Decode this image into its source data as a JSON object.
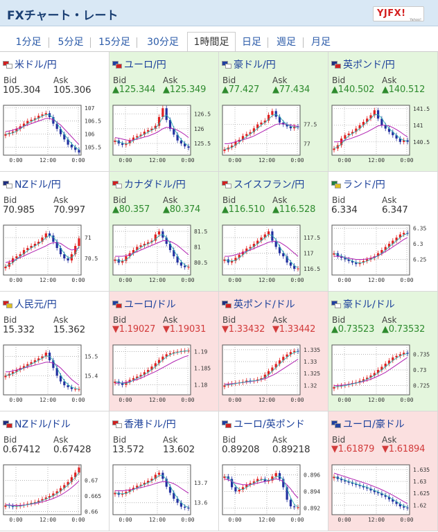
{
  "header": {
    "title": "FXチャート・レート",
    "logo": "YJFX!",
    "logo_sub": "Yahoo!"
  },
  "tabs": [
    {
      "label": "1分足"
    },
    {
      "label": "5分足"
    },
    {
      "label": "15分足"
    },
    {
      "label": "30分足"
    },
    {
      "label": "1時間足",
      "active": true
    },
    {
      "label": "日足"
    },
    {
      "label": "週足"
    },
    {
      "label": "月足"
    }
  ],
  "labels": {
    "bid": "Bid",
    "ask": "Ask"
  },
  "colors": {
    "up": "#2e8b2e",
    "down": "#d23b3b",
    "candle_up": "#e02020",
    "candle_down": "#2230a0",
    "ma1": "#2ab0b0",
    "ma2": "#b020b0"
  },
  "pairs": [
    {
      "name": "米ドル/円",
      "dir": "flat",
      "bid": "105.304",
      "ask": "105.306",
      "flags": [
        "#d02020",
        "#ffffff"
      ],
      "chart": {
        "yticks": [
          "107",
          "106.5",
          "106",
          "105.5"
        ],
        "xticks": [
          "0:00",
          "12:00",
          "0:00"
        ],
        "ymin": 105.2,
        "ymax": 107.1,
        "close": [
          106.0,
          106.05,
          106.1,
          106.2,
          106.3,
          106.4,
          106.5,
          106.55,
          106.6,
          106.7,
          106.75,
          106.8,
          106.65,
          106.4,
          106.2,
          106.0,
          105.8,
          105.6,
          105.5,
          105.4,
          105.3
        ],
        "ma": [
          106.1,
          106.12,
          106.15,
          106.2,
          106.25,
          106.3,
          106.35,
          106.4,
          106.45,
          106.5,
          106.55,
          106.6,
          106.6,
          106.55,
          106.45,
          106.35,
          106.2,
          106.05,
          105.9,
          105.75,
          105.6
        ]
      }
    },
    {
      "name": "ユーロ/円",
      "dir": "up",
      "bid": "▲125.344",
      "ask": "▲125.349",
      "flags": [
        "#2040a0",
        "#d02020"
      ],
      "chart": {
        "yticks": [
          "126.5",
          "126",
          "125.5"
        ],
        "xticks": [
          "0:00",
          "12:00",
          "0:00"
        ],
        "ymin": 125.1,
        "ymax": 126.8,
        "close": [
          125.6,
          125.5,
          125.45,
          125.5,
          125.6,
          125.7,
          125.75,
          125.8,
          125.9,
          125.95,
          126.0,
          126.1,
          126.4,
          126.7,
          126.3,
          126.0,
          125.8,
          125.6,
          125.5,
          125.4,
          125.35
        ],
        "ma": [
          125.7,
          125.68,
          125.65,
          125.62,
          125.6,
          125.62,
          125.65,
          125.68,
          125.72,
          125.75,
          125.8,
          125.85,
          125.92,
          126.0,
          126.05,
          126.03,
          126.0,
          125.95,
          125.88,
          125.8,
          125.7
        ]
      }
    },
    {
      "name": "豪ドル/円",
      "dir": "up",
      "bid": "▲77.427",
      "ask": "▲77.434",
      "flags": [
        "#2040a0",
        "#ffffff"
      ],
      "chart": {
        "yticks": [
          "77.5",
          "77"
        ],
        "xticks": [
          "0:00",
          "12:00",
          "0:00"
        ],
        "ymin": 76.7,
        "ymax": 78.0,
        "close": [
          76.85,
          76.9,
          76.95,
          77.05,
          77.1,
          77.2,
          77.25,
          77.3,
          77.4,
          77.5,
          77.55,
          77.6,
          77.75,
          77.85,
          77.7,
          77.55,
          77.5,
          77.45,
          77.4,
          77.45,
          77.43
        ],
        "ma": [
          77.0,
          77.0,
          77.02,
          77.05,
          77.08,
          77.1,
          77.13,
          77.16,
          77.2,
          77.25,
          77.3,
          77.35,
          77.4,
          77.45,
          77.5,
          77.52,
          77.52,
          77.5,
          77.48,
          77.47,
          77.45
        ]
      }
    },
    {
      "name": "英ポンド/円",
      "dir": "up",
      "bid": "▲140.502",
      "ask": "▲140.512",
      "flags": [
        "#203080",
        "#d02020"
      ],
      "chart": {
        "yticks": [
          "141.5",
          "141",
          "140.5"
        ],
        "xticks": [
          "0:00",
          "12:00",
          "0:00"
        ],
        "ymin": 140.1,
        "ymax": 141.6,
        "close": [
          140.3,
          140.4,
          140.6,
          140.7,
          140.75,
          140.8,
          140.9,
          141.0,
          141.1,
          141.2,
          141.3,
          141.45,
          141.2,
          141.0,
          140.9,
          140.8,
          140.7,
          140.6,
          140.5,
          140.55,
          140.5
        ],
        "ma": [
          140.5,
          140.5,
          140.52,
          140.55,
          140.58,
          140.62,
          140.66,
          140.7,
          140.75,
          140.8,
          140.86,
          140.92,
          140.98,
          141.0,
          141.0,
          140.98,
          140.93,
          140.87,
          140.8,
          140.72,
          140.65
        ]
      }
    },
    {
      "name": "NZドル/円",
      "dir": "flat",
      "bid": "70.985",
      "ask": "70.997",
      "flags": [
        "#203080",
        "#ffffff"
      ],
      "chart": {
        "yticks": [
          "71",
          "70.5"
        ],
        "xticks": [
          "0:00",
          "12:00",
          "0:00"
        ],
        "ymin": 70.1,
        "ymax": 71.3,
        "close": [
          70.3,
          70.4,
          70.5,
          70.55,
          70.6,
          70.7,
          70.75,
          70.8,
          70.85,
          70.9,
          71.0,
          71.1,
          71.05,
          70.9,
          70.75,
          70.6,
          70.5,
          70.45,
          70.6,
          70.8,
          70.98
        ],
        "ma": [
          70.4,
          70.42,
          70.45,
          70.48,
          70.52,
          70.56,
          70.6,
          70.64,
          70.68,
          70.72,
          70.76,
          70.8,
          70.85,
          70.88,
          70.88,
          70.86,
          70.8,
          70.74,
          70.7,
          70.72,
          70.75
        ]
      }
    },
    {
      "name": "カナダドル/円",
      "dir": "up",
      "bid": "▲80.357",
      "ask": "▲80.374",
      "flags": [
        "#d02020",
        "#ffffff"
      ],
      "chart": {
        "yticks": [
          "81.5",
          "81",
          "80.5"
        ],
        "xticks": [
          "0:00",
          "12:00",
          "0:00"
        ],
        "ymin": 80.1,
        "ymax": 81.7,
        "close": [
          80.6,
          80.5,
          80.55,
          80.7,
          80.8,
          80.9,
          81.0,
          81.05,
          81.1,
          81.15,
          81.2,
          81.4,
          81.5,
          81.3,
          81.1,
          80.9,
          80.7,
          80.5,
          80.4,
          80.35,
          80.36
        ],
        "ma": [
          80.7,
          80.7,
          80.7,
          80.72,
          80.75,
          80.8,
          80.85,
          80.9,
          80.95,
          81.0,
          81.05,
          81.1,
          81.15,
          81.2,
          81.2,
          81.18,
          81.12,
          81.05,
          80.95,
          80.85,
          80.75
        ]
      }
    },
    {
      "name": "スイスフラン/円",
      "dir": "up",
      "bid": "▲116.510",
      "ask": "▲116.528",
      "flags": [
        "#d02020",
        "#ffffff"
      ],
      "chart": {
        "yticks": [
          "117.5",
          "117",
          "116.5"
        ],
        "xticks": [
          "0:00",
          "12:00",
          "0:00"
        ],
        "ymin": 116.3,
        "ymax": 117.9,
        "close": [
          116.8,
          116.7,
          116.75,
          116.85,
          116.95,
          117.05,
          117.15,
          117.2,
          117.3,
          117.4,
          117.5,
          117.6,
          117.7,
          117.4,
          117.2,
          117.0,
          116.9,
          116.7,
          116.6,
          116.5,
          116.51
        ],
        "ma": [
          116.9,
          116.9,
          116.92,
          116.95,
          116.98,
          117.02,
          117.06,
          117.1,
          117.15,
          117.2,
          117.25,
          117.3,
          117.35,
          117.38,
          117.38,
          117.35,
          117.28,
          117.2,
          117.1,
          117.0,
          116.9
        ]
      }
    },
    {
      "name": "ランド/円",
      "dir": "flat",
      "bid": "6.334",
      "ask": "6.347",
      "flags": [
        "#208040",
        "#e0c020"
      ],
      "chart": {
        "yticks": [
          "6.35",
          "6.3",
          "6.25"
        ],
        "xticks": [
          "0:00",
          "12:00",
          "0:00"
        ],
        "ymin": 6.2,
        "ymax": 6.36,
        "close": [
          6.27,
          6.26,
          6.255,
          6.25,
          6.245,
          6.24,
          6.235,
          6.24,
          6.245,
          6.25,
          6.255,
          6.26,
          6.27,
          6.28,
          6.29,
          6.3,
          6.31,
          6.32,
          6.33,
          6.335,
          6.334
        ],
        "ma": [
          6.26,
          6.26,
          6.258,
          6.256,
          6.254,
          6.252,
          6.25,
          6.25,
          6.25,
          6.252,
          6.254,
          6.258,
          6.262,
          6.268,
          6.275,
          6.282,
          6.29,
          6.298,
          6.306,
          6.314,
          6.32
        ]
      }
    },
    {
      "name": "人民元/円",
      "dir": "flat",
      "bid": "15.332",
      "ask": "15.362",
      "flags": [
        "#d02020",
        "#e0c020"
      ],
      "chart": {
        "yticks": [
          "15.5",
          "15.4"
        ],
        "xticks": [
          "0:00",
          "12:00",
          "0:00"
        ],
        "ymin": 15.3,
        "ymax": 15.56,
        "close": [
          15.4,
          15.41,
          15.42,
          15.43,
          15.44,
          15.45,
          15.46,
          15.47,
          15.48,
          15.49,
          15.5,
          15.52,
          15.48,
          15.44,
          15.4,
          15.37,
          15.35,
          15.34,
          15.33,
          15.33,
          15.33
        ],
        "ma": [
          15.42,
          15.42,
          15.425,
          15.43,
          15.435,
          15.44,
          15.445,
          15.45,
          15.455,
          15.46,
          15.465,
          15.47,
          15.47,
          15.465,
          15.455,
          15.44,
          15.42,
          15.4,
          15.38,
          15.365,
          15.35
        ]
      }
    },
    {
      "name": "ユーロ/ドル",
      "dir": "down",
      "bid": "▼1.19027",
      "ask": "▼1.19031",
      "flags": [
        "#2040a0",
        "#d02020"
      ],
      "chart": {
        "yticks": [
          "1.19",
          "1.185",
          "1.18"
        ],
        "xticks": [
          "0:00",
          "12:00",
          "0:00"
        ],
        "ymin": 1.177,
        "ymax": 1.192,
        "close": [
          1.181,
          1.1805,
          1.18,
          1.1808,
          1.1815,
          1.182,
          1.1825,
          1.183,
          1.1838,
          1.1845,
          1.1855,
          1.1865,
          1.1875,
          1.1885,
          1.1892,
          1.1895,
          1.1898,
          1.19,
          1.1902,
          1.1903,
          1.1903
        ],
        "ma": [
          1.1805,
          1.1805,
          1.1806,
          1.1808,
          1.181,
          1.1813,
          1.1816,
          1.182,
          1.1825,
          1.183,
          1.1835,
          1.184,
          1.1846,
          1.1852,
          1.1858,
          1.1864,
          1.187,
          1.1875,
          1.188,
          1.1885,
          1.1888
        ]
      }
    },
    {
      "name": "英ポンド/ドル",
      "dir": "down",
      "bid": "▼1.33432",
      "ask": "▼1.33442",
      "flags": [
        "#203080",
        "#d02020"
      ],
      "chart": {
        "yticks": [
          "1.335",
          "1.33",
          "1.325",
          "1.32"
        ],
        "xticks": [
          "0:00",
          "12:00",
          "0:00"
        ],
        "ymin": 1.316,
        "ymax": 1.337,
        "close": [
          1.32,
          1.3205,
          1.3208,
          1.321,
          1.3212,
          1.3215,
          1.322,
          1.3218,
          1.322,
          1.3225,
          1.323,
          1.3245,
          1.326,
          1.3275,
          1.329,
          1.3305,
          1.332,
          1.333,
          1.334,
          1.3345,
          1.3343
        ],
        "ma": [
          1.3205,
          1.3206,
          1.3207,
          1.3208,
          1.321,
          1.3212,
          1.3214,
          1.3216,
          1.3218,
          1.322,
          1.3224,
          1.3228,
          1.3235,
          1.3242,
          1.325,
          1.326,
          1.327,
          1.328,
          1.329,
          1.33,
          1.331
        ]
      }
    },
    {
      "name": "豪ドル/ドル",
      "dir": "up",
      "bid": "▲0.73523",
      "ask": "▲0.73532",
      "flags": [
        "#2040a0",
        "#ffffff"
      ],
      "chart": {
        "yticks": [
          "0.735",
          "0.73",
          "0.725"
        ],
        "xticks": [
          "0:00",
          "12:00",
          "0:00"
        ],
        "ymin": 0.722,
        "ymax": 0.738,
        "close": [
          0.7245,
          0.7248,
          0.725,
          0.7252,
          0.7255,
          0.7258,
          0.726,
          0.7265,
          0.727,
          0.7275,
          0.7282,
          0.729,
          0.73,
          0.731,
          0.732,
          0.733,
          0.734,
          0.7345,
          0.735,
          0.7355,
          0.7352
        ],
        "ma": [
          0.725,
          0.725,
          0.7251,
          0.7252,
          0.7254,
          0.7256,
          0.7258,
          0.726,
          0.7263,
          0.7266,
          0.727,
          0.7275,
          0.728,
          0.7286,
          0.7292,
          0.73,
          0.7308,
          0.7316,
          0.7324,
          0.7332,
          0.734
        ]
      }
    },
    {
      "name": "NZドル/ドル",
      "dir": "flat",
      "bid": "0.67412",
      "ask": "0.67428",
      "flags": [
        "#203080",
        "#d02020"
      ],
      "chart": {
        "yticks": [
          "0.67",
          "0.665",
          "0.66"
        ],
        "xticks": [
          "0:00",
          "12:00",
          "0:00"
        ],
        "ymin": 0.659,
        "ymax": 0.675,
        "close": [
          0.662,
          0.6618,
          0.6615,
          0.6617,
          0.662,
          0.6622,
          0.6625,
          0.6628,
          0.663,
          0.6635,
          0.664,
          0.6645,
          0.665,
          0.6658,
          0.6665,
          0.6675,
          0.6685,
          0.6695,
          0.671,
          0.6725,
          0.6741
        ],
        "ma": [
          0.6622,
          0.6621,
          0.662,
          0.662,
          0.662,
          0.6621,
          0.6622,
          0.6624,
          0.6626,
          0.6628,
          0.6631,
          0.6634,
          0.6638,
          0.6642,
          0.6647,
          0.6653,
          0.666,
          0.6668,
          0.6677,
          0.6687,
          0.6698
        ]
      }
    },
    {
      "name": "香港ドル/円",
      "dir": "flat",
      "bid": "13.572",
      "ask": "13.602",
      "flags": [
        "#d02020",
        "#ffffff"
      ],
      "chart": {
        "yticks": [
          "13.7",
          "13.6"
        ],
        "xticks": [
          "0:00",
          "12:00",
          "0:00"
        ],
        "ymin": 13.54,
        "ymax": 13.79,
        "close": [
          13.65,
          13.64,
          13.645,
          13.655,
          13.665,
          13.675,
          13.685,
          13.69,
          13.7,
          13.71,
          13.72,
          13.74,
          13.75,
          13.72,
          13.68,
          13.65,
          13.62,
          13.6,
          13.58,
          13.575,
          13.572
        ],
        "ma": [
          13.66,
          13.66,
          13.66,
          13.662,
          13.665,
          13.668,
          13.672,
          13.676,
          13.68,
          13.685,
          13.69,
          13.696,
          13.702,
          13.706,
          13.706,
          13.702,
          13.695,
          13.685,
          13.672,
          13.66,
          13.648
        ]
      }
    },
    {
      "name": "ユーロ/英ポンド",
      "dir": "flat",
      "bid": "0.89208",
      "ask": "0.89218",
      "flags": [
        "#2040a0",
        "#d02020"
      ],
      "chart": {
        "yticks": [
          "0.896",
          "0.894",
          "0.892"
        ],
        "xticks": [
          "0:00",
          "12:00",
          "0:00"
        ],
        "ymin": 0.8912,
        "ymax": 0.8972,
        "close": [
          0.8958,
          0.8955,
          0.8945,
          0.894,
          0.8942,
          0.8945,
          0.8948,
          0.895,
          0.8952,
          0.8955,
          0.8955,
          0.8952,
          0.8953,
          0.8958,
          0.8962,
          0.8955,
          0.8945,
          0.893,
          0.8922,
          0.8921,
          0.8921
        ],
        "ma": [
          0.8955,
          0.8954,
          0.8952,
          0.895,
          0.8949,
          0.8948,
          0.8948,
          0.8948,
          0.8949,
          0.895,
          0.8951,
          0.8952,
          0.8953,
          0.8954,
          0.8955,
          0.8954,
          0.8952,
          0.8948,
          0.8943,
          0.8937,
          0.8932
        ]
      }
    },
    {
      "name": "ユーロ/豪ドル",
      "dir": "down",
      "bid": "▼1.61879",
      "ask": "▼1.61894",
      "flags": [
        "#2040a0",
        "#2040a0"
      ],
      "chart": {
        "yticks": [
          "1.635",
          "1.63",
          "1.625",
          "1.62"
        ],
        "xticks": [
          "0:00",
          "12:00",
          "0:00"
        ],
        "ymin": 1.616,
        "ymax": 1.637,
        "close": [
          1.632,
          1.631,
          1.6305,
          1.63,
          1.6295,
          1.629,
          1.6285,
          1.628,
          1.6275,
          1.627,
          1.6262,
          1.6255,
          1.625,
          1.6242,
          1.6235,
          1.6225,
          1.6215,
          1.6205,
          1.6195,
          1.619,
          1.6188
        ],
        "ma": [
          1.6335,
          1.633,
          1.6325,
          1.632,
          1.6315,
          1.631,
          1.6305,
          1.63,
          1.6295,
          1.629,
          1.6284,
          1.6278,
          1.6272,
          1.6265,
          1.6258,
          1.625,
          1.6242,
          1.6233,
          1.6224,
          1.6215,
          1.6206
        ]
      }
    }
  ]
}
